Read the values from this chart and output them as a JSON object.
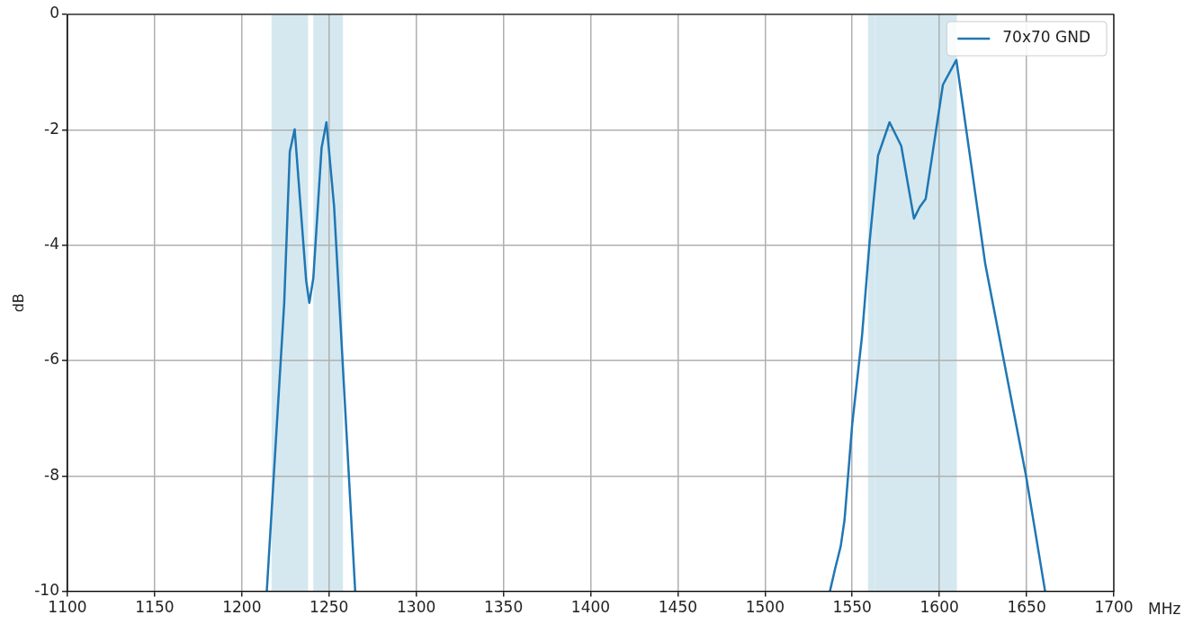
{
  "chart_data": {
    "type": "line",
    "xlabel": "MHz",
    "ylabel": "dB",
    "xlim": [
      1100,
      1700
    ],
    "xticks": [
      1100,
      1150,
      1200,
      1250,
      1300,
      1350,
      1400,
      1450,
      1500,
      1550,
      1600,
      1650,
      1700
    ],
    "ylim": [
      -10,
      0
    ],
    "yticks": [
      -10,
      -8,
      -6,
      -4,
      -2,
      0
    ],
    "grid": true,
    "legend": "top right",
    "bands": [
      {
        "axis": "x",
        "from": 1217,
        "to": 1238,
        "color": "#d5e8f0"
      },
      {
        "axis": "x",
        "from": 1241,
        "to": 1258,
        "color": "#d5e8f0"
      },
      {
        "axis": "x",
        "from": 1559,
        "to": 1563,
        "color": "#d5e8f0"
      },
      {
        "axis": "x",
        "from": 1563,
        "to": 1610,
        "color": "#d5e8f0"
      }
    ],
    "series": [
      {
        "name": "70x70 GND",
        "color": "#1f77b4",
        "x": [
          1214.3,
          1224.3,
          1227.5,
          1230.3,
          1236.9,
          1238.7,
          1241,
          1245.7,
          1248.5,
          1252.9,
          1265,
          1300,
          1537.2,
          1540.1,
          1543.4,
          1545.6,
          1550,
          1555.6,
          1560,
          1564.8,
          1571.4,
          1578.1,
          1585.4,
          1588.7,
          1592.1,
          1602,
          1609.7,
          1626.3,
          1649.6,
          1660.6
        ],
        "values": [
          -10,
          -5.0,
          -2.38,
          -1.99,
          -4.62,
          -5.0,
          -4.57,
          -2.32,
          -1.87,
          -3.33,
          -10,
          null,
          -10,
          -9.62,
          -9.22,
          -8.76,
          -7.1,
          -5.58,
          -3.93,
          -2.45,
          -1.87,
          -2.28,
          -3.54,
          -3.34,
          -3.2,
          -1.22,
          -0.79,
          -4.33,
          -7.99,
          -10
        ]
      }
    ]
  }
}
